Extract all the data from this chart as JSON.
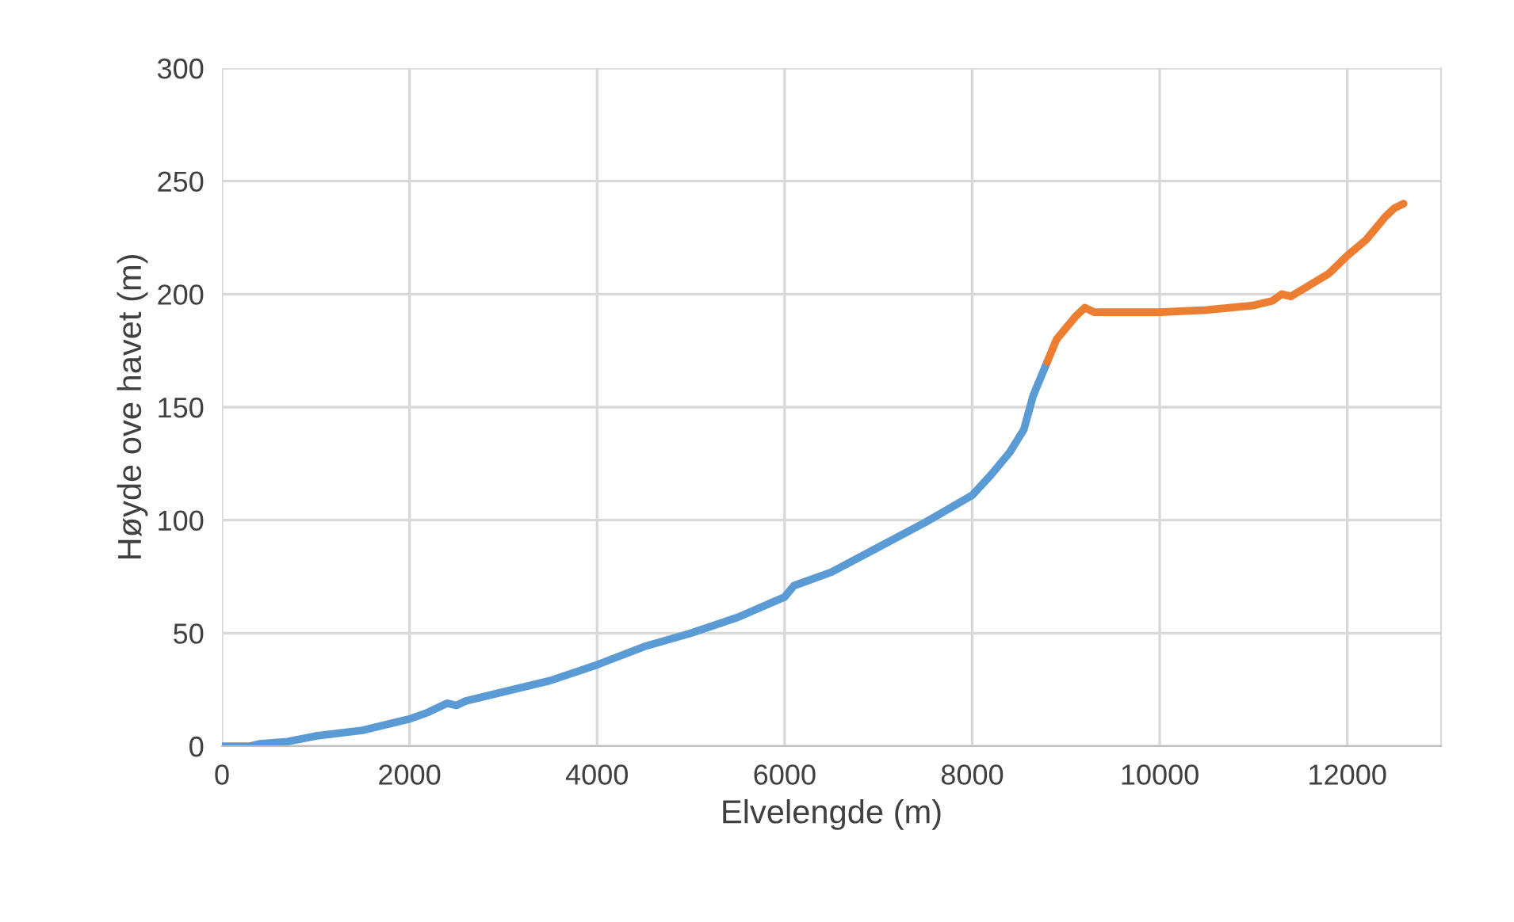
{
  "chart_data": {
    "type": "line",
    "xlabel": "Elvelengde (m)",
    "ylabel": "Høyde ove havet (m)",
    "xlim": [
      0,
      13000
    ],
    "xticks": [
      0,
      2000,
      4000,
      6000,
      8000,
      10000,
      12000
    ],
    "ylim": [
      0,
      300
    ],
    "yticks": [
      0,
      50,
      100,
      150,
      200,
      250,
      300
    ],
    "grid": true,
    "marker": "none",
    "line_style": "solid",
    "series": [
      {
        "color": "#5b9bd5",
        "x": [
          0,
          300,
          400,
          700,
          1000,
          1500,
          2000,
          2200,
          2400,
          2500,
          2600,
          3000,
          3500,
          4000,
          4500,
          5000,
          5500,
          6000,
          6100,
          6500,
          7000,
          7500,
          8000,
          8200,
          8400,
          8550,
          8650,
          8800
        ],
        "values": [
          0,
          0,
          1,
          2,
          4.5,
          7,
          12,
          15,
          19,
          18,
          20,
          24,
          29,
          36,
          44,
          50,
          57,
          66,
          71,
          77,
          88,
          99,
          111,
          120,
          130,
          140,
          155,
          170
        ]
      },
      {
        "color": "#ed7d31",
        "x": [
          8800,
          8900,
          9000,
          9100,
          9200,
          9300,
          10000,
          10500,
          11000,
          11200,
          11300,
          11400,
          11600,
          11800,
          12000,
          12200,
          12400,
          12500,
          12600
        ],
        "values": [
          170,
          180,
          185,
          190,
          194,
          192,
          192,
          193,
          195,
          197,
          200,
          199,
          204,
          209,
          217,
          224,
          234,
          238,
          240
        ]
      }
    ]
  }
}
